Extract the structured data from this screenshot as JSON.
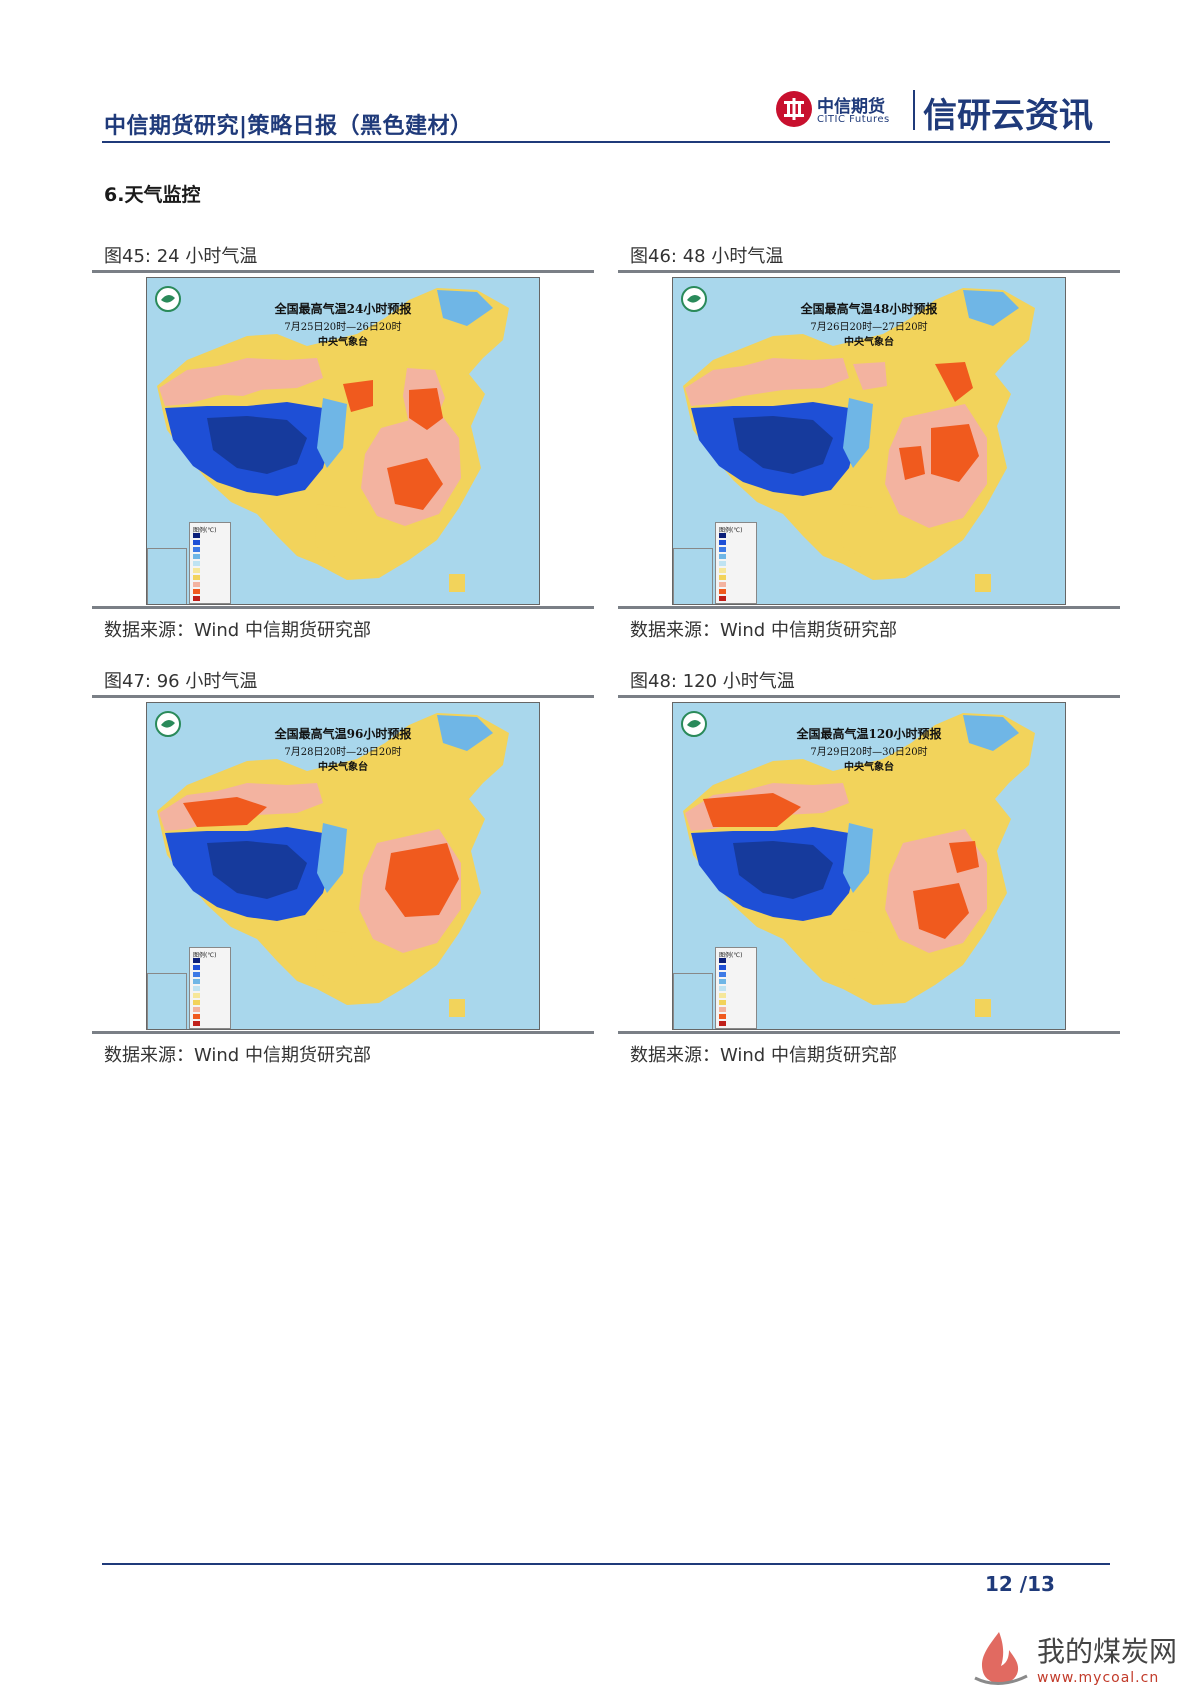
{
  "header": {
    "report_title": "中信期货研究|策略日报（黑色建材）",
    "brand_cn": "中信期货",
    "brand_en": "CITIC Futures",
    "brand_name": "信研云资讯"
  },
  "section": {
    "title": "6.天气监控"
  },
  "figures": [
    {
      "caption": "图45: 24 小时气温",
      "map_title": "全国最高气温24小时预报",
      "map_period": "7月25日20时—26日20时",
      "map_agency": "中央气象台",
      "legend_title": "图例(℃)",
      "source": "数据来源：Wind  中信期货研究部"
    },
    {
      "caption": "图46: 48 小时气温",
      "map_title": "全国最高气温48小时预报",
      "map_period": "7月26日20时—27日20时",
      "map_agency": "中央气象台",
      "legend_title": "图例(℃)",
      "source": "数据来源：Wind  中信期货研究部"
    },
    {
      "caption": "图47: 96 小时气温",
      "map_title": "全国最高气温96小时预报",
      "map_period": "7月28日20时—29日20时",
      "map_agency": "中央气象台",
      "legend_title": "图例(℃)",
      "source": "数据来源：Wind  中信期货研究部"
    },
    {
      "caption": "图48: 120 小时气温",
      "map_title": "全国最高气温120小时预报",
      "map_period": "7月29日20时—30日20时",
      "map_agency": "中央气象台",
      "legend_title": "图例(℃)",
      "source": "数据来源：Wind  中信期货研究部"
    }
  ],
  "colors": {
    "brand_blue": "#1f3a7a",
    "cold": "#1e4fd6",
    "cool": "#6fb6e6",
    "mild": "#f2d35b",
    "warm": "#f3b3a0",
    "hot": "#f05a1e",
    "sea": "#a9d7ec"
  },
  "footer": {
    "page_number": "12  /13"
  },
  "watermark": {
    "cn": "我的煤炭网",
    "url": "www.mycoal.cn"
  }
}
